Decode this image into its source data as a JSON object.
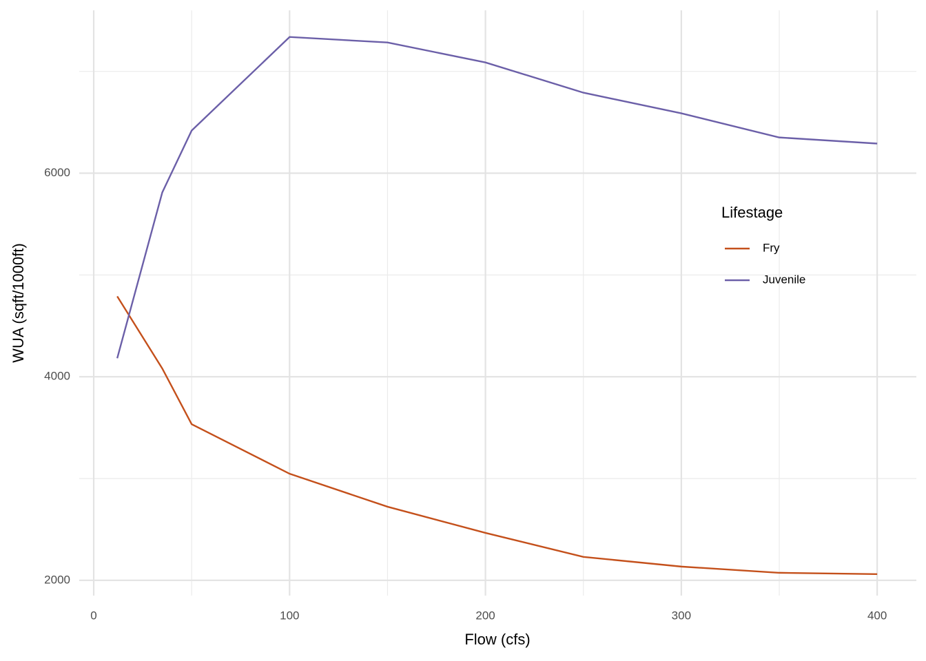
{
  "chart_data": {
    "type": "line",
    "x_label": "Flow (cfs)",
    "y_label": "WUA (sqft/1000ft)",
    "x": [
      12,
      35,
      50,
      100,
      150,
      200,
      250,
      300,
      350,
      400
    ],
    "series": [
      {
        "name": "Fry",
        "color": "#c4501b",
        "values": [
          4790,
          4081,
          3534,
          3047,
          2723,
          2466,
          2230,
          2135,
          2074,
          2061
        ]
      },
      {
        "name": "Juvenile",
        "color": "#6b5fa8",
        "values": [
          4182,
          5811,
          6419,
          7338,
          7284,
          7088,
          6791,
          6588,
          6351,
          6291
        ]
      }
    ],
    "xlim": [
      -7.4,
      420
    ],
    "ylim": [
      1850,
      7600
    ],
    "xticks": [
      0,
      100,
      200,
      300,
      400
    ],
    "yticks": [
      2000,
      4000,
      6000
    ],
    "minor_xticks": [
      50,
      150,
      250,
      350
    ],
    "minor_yticks": [
      3000,
      5000,
      7000
    ],
    "grid": true,
    "legend_title": "Lifestage",
    "legend_position": "right"
  }
}
